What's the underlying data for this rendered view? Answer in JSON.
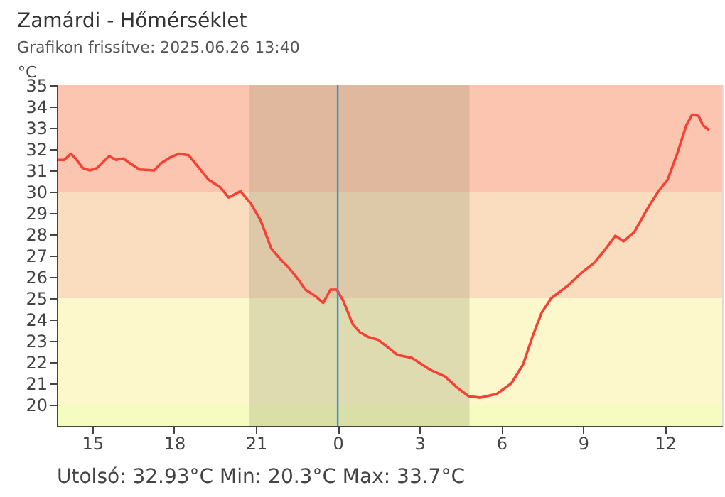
{
  "chart_data": {
    "type": "line",
    "title": "Zamárdi - Hőmérséklet",
    "subtitle": "Grafikon frissítve: 2025.06.26 13:40",
    "ylabel": "°C",
    "series": [
      {
        "color": "#f44336",
        "x": [
          "2025-06-25T13:44",
          "2025-06-25T13:58",
          "2025-06-25T14:13",
          "2025-06-25T14:23",
          "2025-06-25T14:39",
          "2025-06-25T14:55",
          "2025-06-25T15:10",
          "2025-06-25T15:21",
          "2025-06-25T15:37",
          "2025-06-25T15:52",
          "2025-06-25T16:08",
          "2025-06-25T16:23",
          "2025-06-25T16:44",
          "2025-06-25T17:16",
          "2025-06-25T17:31",
          "2025-06-25T17:52",
          "2025-06-25T18:11",
          "2025-06-25T18:32",
          "2025-06-25T18:55",
          "2025-06-25T19:16",
          "2025-06-25T19:41",
          "2025-06-25T20:00",
          "2025-06-25T20:26",
          "2025-06-25T20:49",
          "2025-06-25T21:10",
          "2025-06-25T21:34",
          "2025-06-25T21:56",
          "2025-06-25T22:12",
          "2025-06-25T22:33",
          "2025-06-25T22:49",
          "2025-06-25T23:10",
          "2025-06-25T23:28",
          "2025-06-25T23:44",
          "2025-06-25T23:58",
          "2025-06-26T00:12",
          "2025-06-26T00:33",
          "2025-06-26T00:49",
          "2025-06-26T01:07",
          "2025-06-26T01:30",
          "2025-06-26T02:12",
          "2025-06-26T02:43",
          "2025-06-26T03:25",
          "2025-06-26T03:56",
          "2025-06-26T04:22",
          "2025-06-26T04:48",
          "2025-06-26T05:14",
          "2025-06-26T05:50",
          "2025-06-26T06:22",
          "2025-06-26T06:48",
          "2025-06-26T07:09",
          "2025-06-26T07:29",
          "2025-06-26T07:50",
          "2025-06-26T08:27",
          "2025-06-26T08:58",
          "2025-06-26T09:25",
          "2025-06-26T09:50",
          "2025-06-26T10:11",
          "2025-06-26T10:29",
          "2025-06-26T10:53",
          "2025-06-26T11:19",
          "2025-06-26T11:45",
          "2025-06-26T12:06",
          "2025-06-26T12:27",
          "2025-06-26T12:47",
          "2025-06-26T13:00",
          "2025-06-26T13:14",
          "2025-06-26T13:24",
          "2025-06-26T13:38"
        ],
        "values": [
          31.49,
          31.49,
          31.78,
          31.56,
          31.11,
          31.0,
          31.11,
          31.33,
          31.67,
          31.49,
          31.56,
          31.33,
          31.04,
          31.0,
          31.33,
          31.62,
          31.78,
          31.71,
          31.11,
          30.56,
          30.22,
          29.73,
          30.02,
          29.44,
          28.67,
          27.33,
          26.78,
          26.44,
          25.89,
          25.4,
          25.11,
          24.78,
          25.4,
          25.4,
          24.89,
          23.78,
          23.4,
          23.18,
          23.04,
          22.33,
          22.2,
          21.62,
          21.33,
          20.82,
          20.4,
          20.33,
          20.51,
          21.0,
          21.89,
          23.22,
          24.33,
          25.0,
          25.6,
          26.22,
          26.67,
          27.33,
          27.93,
          27.67,
          28.11,
          29.11,
          30.0,
          30.56,
          31.78,
          33.11,
          33.62,
          33.56,
          33.11,
          32.89
        ]
      }
    ],
    "xlim": [
      "2025-06-25T13:42",
      "2025-06-26T14:06"
    ],
    "xticks": [
      {
        "value": "2025-06-25T15:00",
        "label": "15"
      },
      {
        "value": "2025-06-25T18:00",
        "label": "18"
      },
      {
        "value": "2025-06-25T21:00",
        "label": "21"
      },
      {
        "value": "2025-06-26T00:00",
        "label": "0"
      },
      {
        "value": "2025-06-26T03:00",
        "label": "3"
      },
      {
        "value": "2025-06-26T06:00",
        "label": "6"
      },
      {
        "value": "2025-06-26T09:00",
        "label": "9"
      },
      {
        "value": "2025-06-26T12:00",
        "label": "12"
      }
    ],
    "ylim": [
      19,
      35
    ],
    "yticks": [
      20,
      21,
      22,
      23,
      24,
      25,
      26,
      27,
      28,
      29,
      30,
      31,
      32,
      33,
      34,
      35
    ],
    "bands": [
      {
        "axis": "y",
        "from": 30,
        "to": 35,
        "color": "#fcc5b0"
      },
      {
        "axis": "y",
        "from": 25,
        "to": 30,
        "color": "#fadcbf"
      },
      {
        "axis": "y",
        "from": 20,
        "to": 25,
        "color": "#fdf7cc"
      },
      {
        "axis": "y",
        "from": 19,
        "to": 20,
        "color": "#f5fcc0"
      },
      {
        "axis": "x",
        "from": "2025-06-25T20:46",
        "to": "2025-06-26T04:50",
        "color": "#9a9a70"
      }
    ],
    "ref_lines": [
      {
        "axis": "x",
        "value": "2025-06-26T00:00",
        "color": "#2196f3"
      }
    ],
    "annotations": [
      "Utolsó: 32.93°C  Min: 20.3°C  Max: 33.7°C"
    ],
    "grid": false
  }
}
